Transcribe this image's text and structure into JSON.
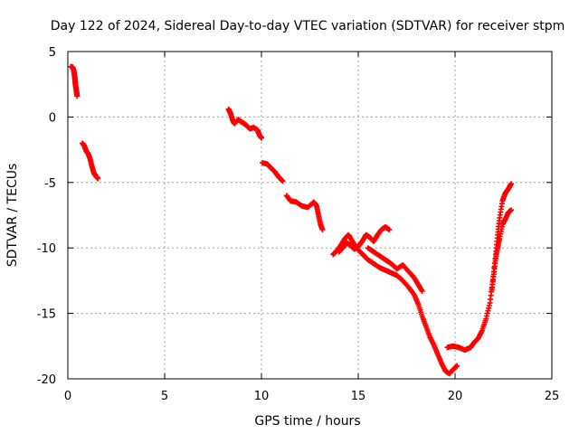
{
  "chart_data": {
    "type": "scatter",
    "title": "Day 122 of 2024, Sidereal Day-to-day VTEC variation (SDTVAR) for receiver stpm",
    "xlabel": "GPS time / hours",
    "ylabel": "SDTVAR / TECUs",
    "xlim": [
      0,
      25
    ],
    "ylim": [
      -20,
      5
    ],
    "xticks": [
      0,
      5,
      10,
      15,
      20,
      25
    ],
    "yticks": [
      5,
      0,
      -5,
      -10,
      -15,
      -20
    ],
    "grid": true,
    "marker": "+",
    "series": [
      {
        "name": "SDTVAR",
        "color": "#ff0000",
        "segments": [
          [
            [
              0.15,
              3.85
            ],
            [
              0.25,
              3.8
            ],
            [
              0.3,
              3.6
            ],
            [
              0.33,
              3.3
            ],
            [
              0.36,
              3.0
            ],
            [
              0.38,
              2.7
            ],
            [
              0.4,
              2.4
            ],
            [
              0.43,
              2.1
            ],
            [
              0.46,
              1.8
            ],
            [
              0.48,
              1.6
            ]
          ],
          [
            [
              0.75,
              -2.0
            ],
            [
              0.85,
              -2.2
            ],
            [
              0.95,
              -2.6
            ],
            [
              1.05,
              -2.8
            ],
            [
              1.15,
              -3.2
            ],
            [
              1.25,
              -3.8
            ],
            [
              1.35,
              -4.3
            ],
            [
              1.45,
              -4.5
            ],
            [
              1.55,
              -4.7
            ]
          ],
          [
            [
              8.3,
              0.6
            ],
            [
              8.4,
              0.3
            ],
            [
              8.5,
              -0.2
            ],
            [
              8.6,
              -0.5
            ],
            [
              8.8,
              -0.2
            ],
            [
              9.0,
              -0.4
            ],
            [
              9.2,
              -0.6
            ],
            [
              9.4,
              -0.9
            ],
            [
              9.6,
              -0.8
            ],
            [
              9.8,
              -1.0
            ],
            [
              9.9,
              -1.4
            ],
            [
              10.0,
              -1.6
            ]
          ],
          [
            [
              10.05,
              -3.5
            ],
            [
              10.3,
              -3.6
            ],
            [
              10.5,
              -3.9
            ],
            [
              10.7,
              -4.2
            ],
            [
              10.9,
              -4.6
            ],
            [
              11.1,
              -4.9
            ]
          ],
          [
            [
              11.3,
              -6.0
            ],
            [
              11.5,
              -6.4
            ],
            [
              11.8,
              -6.5
            ],
            [
              12.1,
              -6.8
            ],
            [
              12.4,
              -6.9
            ],
            [
              12.7,
              -6.5
            ],
            [
              12.85,
              -6.8
            ],
            [
              12.95,
              -7.5
            ],
            [
              13.05,
              -8.2
            ],
            [
              13.15,
              -8.6
            ]
          ],
          [
            [
              13.7,
              -10.5
            ],
            [
              13.9,
              -10.2
            ],
            [
              14.1,
              -9.8
            ],
            [
              14.3,
              -9.3
            ],
            [
              14.5,
              -9.0
            ],
            [
              14.7,
              -9.5
            ],
            [
              14.9,
              -10.0
            ],
            [
              15.1,
              -10.3
            ],
            [
              15.3,
              -10.6
            ],
            [
              15.5,
              -10.9
            ],
            [
              15.8,
              -11.2
            ],
            [
              16.1,
              -11.5
            ],
            [
              16.4,
              -11.7
            ],
            [
              16.7,
              -11.9
            ],
            [
              17.0,
              -12.1
            ],
            [
              17.3,
              -12.5
            ],
            [
              17.6,
              -13.0
            ],
            [
              17.9,
              -13.6
            ],
            [
              18.1,
              -14.3
            ],
            [
              18.3,
              -15.2
            ],
            [
              18.5,
              -16.0
            ],
            [
              18.7,
              -16.8
            ],
            [
              18.9,
              -17.4
            ],
            [
              19.1,
              -18.1
            ],
            [
              19.3,
              -18.8
            ],
            [
              19.5,
              -19.4
            ],
            [
              19.7,
              -19.6
            ],
            [
              19.9,
              -19.3
            ],
            [
              20.1,
              -19.0
            ]
          ],
          [
            [
              14.0,
              -10.3
            ],
            [
              14.2,
              -10.0
            ],
            [
              14.4,
              -9.6
            ],
            [
              14.6,
              -9.8
            ],
            [
              14.8,
              -10.1
            ],
            [
              15.0,
              -9.9
            ],
            [
              15.2,
              -9.5
            ],
            [
              15.4,
              -9.0
            ],
            [
              15.6,
              -9.2
            ],
            [
              15.8,
              -9.5
            ],
            [
              16.0,
              -9.0
            ],
            [
              16.2,
              -8.6
            ],
            [
              16.4,
              -8.4
            ],
            [
              16.6,
              -8.6
            ]
          ],
          [
            [
              15.5,
              -10.0
            ],
            [
              15.8,
              -10.3
            ],
            [
              16.1,
              -10.6
            ],
            [
              16.4,
              -10.9
            ],
            [
              16.7,
              -11.2
            ],
            [
              17.0,
              -11.6
            ],
            [
              17.3,
              -11.3
            ],
            [
              17.6,
              -11.8
            ],
            [
              17.9,
              -12.3
            ],
            [
              18.1,
              -12.8
            ],
            [
              18.3,
              -13.3
            ]
          ],
          [
            [
              19.6,
              -17.6
            ],
            [
              19.9,
              -17.5
            ],
            [
              20.2,
              -17.6
            ],
            [
              20.5,
              -17.8
            ],
            [
              20.8,
              -17.6
            ],
            [
              21.0,
              -17.2
            ],
            [
              21.2,
              -16.9
            ],
            [
              21.4,
              -16.3
            ],
            [
              21.6,
              -15.4
            ],
            [
              21.8,
              -14.2
            ],
            [
              21.95,
              -12.5
            ],
            [
              22.1,
              -10.5
            ],
            [
              22.2,
              -9.0
            ],
            [
              22.3,
              -7.7
            ],
            [
              22.45,
              -6.4
            ],
            [
              22.6,
              -5.8
            ],
            [
              22.75,
              -5.5
            ],
            [
              22.9,
              -5.1
            ]
          ],
          [
            [
              21.9,
              -13.2
            ],
            [
              22.0,
              -12.0
            ],
            [
              22.1,
              -10.8
            ],
            [
              22.2,
              -10.0
            ],
            [
              22.3,
              -9.3
            ],
            [
              22.45,
              -8.2
            ],
            [
              22.6,
              -7.8
            ],
            [
              22.75,
              -7.3
            ],
            [
              22.9,
              -7.1
            ]
          ]
        ]
      }
    ]
  }
}
